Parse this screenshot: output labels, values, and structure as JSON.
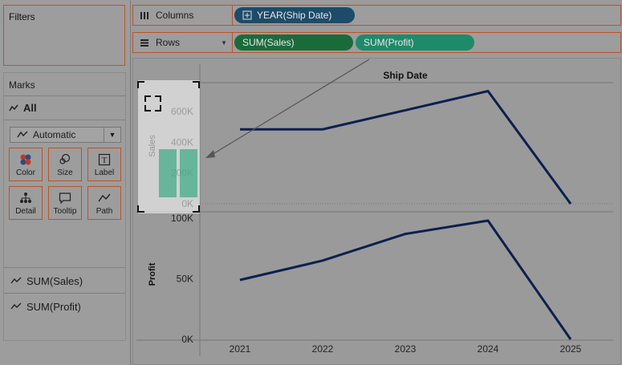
{
  "filters": {
    "title": "Filters"
  },
  "marks": {
    "title": "Marks",
    "all_label": "All",
    "mark_type": "Automatic",
    "buttons": [
      {
        "label": "Color",
        "icon": "color-icon"
      },
      {
        "label": "Size",
        "icon": "size-icon"
      },
      {
        "label": "Label",
        "icon": "label-icon"
      },
      {
        "label": "Detail",
        "icon": "detail-icon"
      },
      {
        "label": "Tooltip",
        "icon": "tooltip-icon"
      },
      {
        "label": "Path",
        "icon": "path-icon"
      }
    ],
    "measures": [
      "SUM(Sales)",
      "SUM(Profit)"
    ]
  },
  "columns": {
    "label": "Columns",
    "pills": [
      "YEAR(Ship Date)"
    ]
  },
  "rows": {
    "label": "Rows",
    "pills": [
      "SUM(Sales)",
      "SUM(Profit)"
    ]
  },
  "colors": {
    "dimension_pill": "#1d4b6a",
    "sales_pill": "#1b6b3a",
    "profit_pill": "#1f8a6a",
    "line": "#0d1f4f",
    "shelf_border": "#b8532b"
  },
  "chart_data": {
    "type": "line",
    "header": "Ship Date",
    "categories": [
      "2021",
      "2022",
      "2023",
      "2024",
      "2025"
    ],
    "series": [
      {
        "name": "Sales",
        "values": [
          484000,
          484000,
          608000,
          733000,
          0
        ]
      },
      {
        "name": "Profit",
        "values": [
          49000,
          65000,
          87000,
          98000,
          0
        ]
      }
    ],
    "sales_axis": {
      "label": "Sales",
      "ticks": [
        "600K",
        "400K",
        "200K",
        "0K"
      ]
    },
    "profit_axis": {
      "label": "Profit",
      "ticks": [
        "100K",
        "50K",
        "0K"
      ]
    }
  }
}
